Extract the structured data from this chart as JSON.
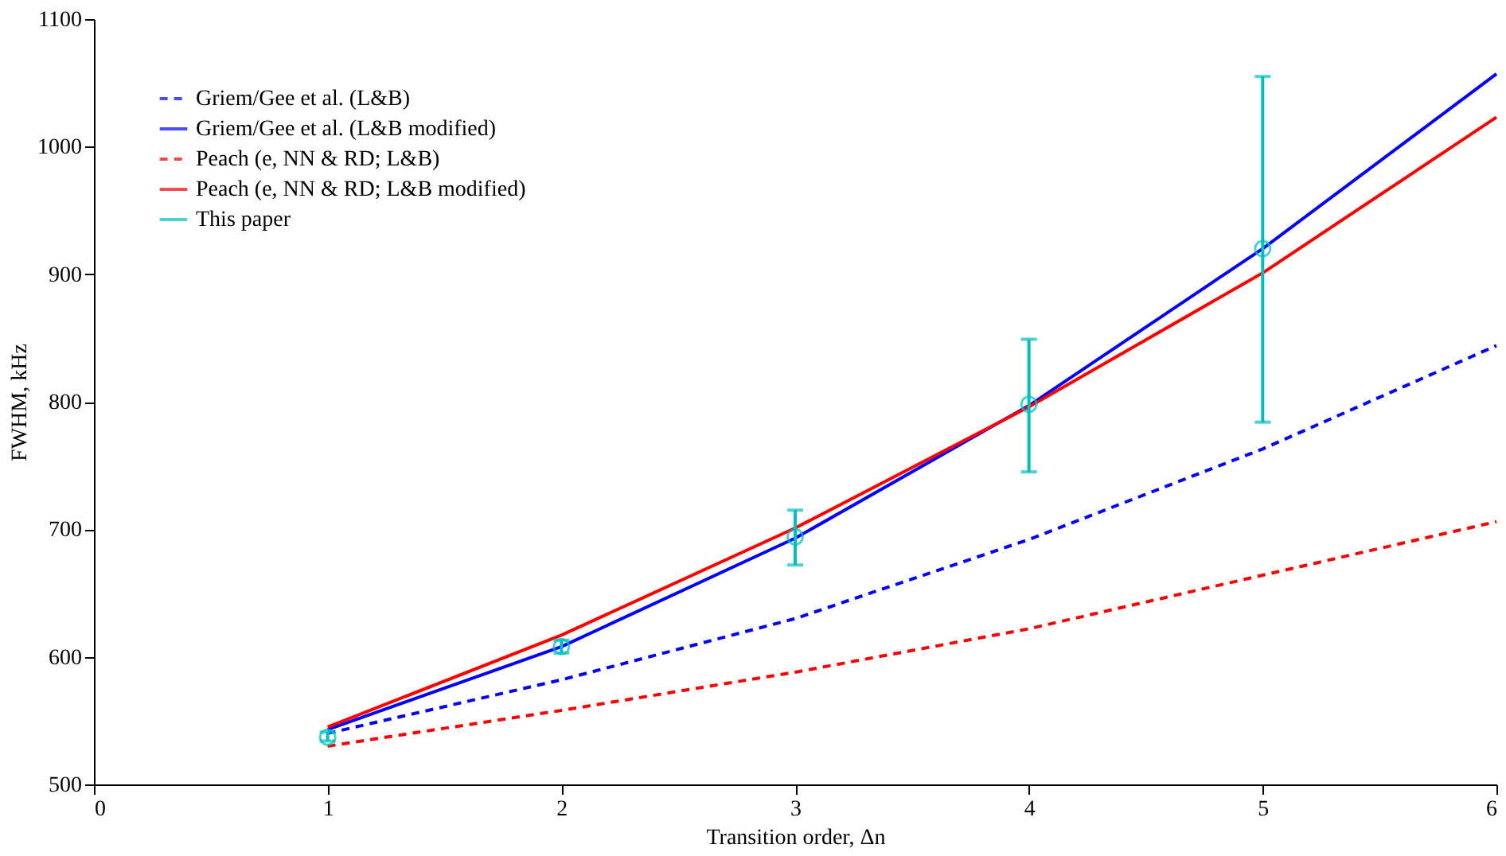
{
  "chart_data": {
    "type": "line",
    "xlabel": "Transition order, Δn",
    "ylabel": "FWHM, kHz",
    "x": [
      1,
      2,
      3,
      4,
      5,
      6
    ],
    "xlim": [
      0,
      6
    ],
    "xticks": [
      0,
      1,
      2,
      3,
      4,
      5,
      6
    ],
    "ylim": [
      500,
      1100
    ],
    "yticks": [
      500,
      600,
      700,
      800,
      900,
      1000,
      1100
    ],
    "grid": false,
    "legend": "top left",
    "series": [
      {
        "name": "Griem/Gee et al. (L&B)",
        "color": "#0000ff",
        "line_style": "dashed",
        "values": [
          540,
          582,
          630,
          692,
          763,
          844
        ]
      },
      {
        "name": "Griem/Gee et al. (L&B modified)",
        "color": "#0000ff",
        "line_style": "solid",
        "values": [
          543,
          608,
          693,
          797,
          920,
          1057
        ]
      },
      {
        "name": "Peach (e, NN & RD; L&B)",
        "color": "#ff0000",
        "line_style": "dashed",
        "values": [
          530,
          558,
          588,
          622,
          664,
          706
        ]
      },
      {
        "name": "Peach (e, NN & RD; L&B modified)",
        "color": "#ff0000",
        "line_style": "solid",
        "values": [
          545,
          617,
          701,
          796,
          901,
          1023
        ]
      },
      {
        "name": "This paper",
        "type": "scatter",
        "color": "#00bfbf",
        "marker": "circle",
        "x": [
          1,
          2,
          3,
          4,
          5
        ],
        "values": [
          537,
          608,
          694,
          798,
          920
        ],
        "errors": [
          [
            534,
            541
          ],
          [
            603,
            613
          ],
          [
            672,
            715
          ],
          [
            745,
            849
          ],
          [
            784,
            1055
          ]
        ]
      }
    ]
  }
}
